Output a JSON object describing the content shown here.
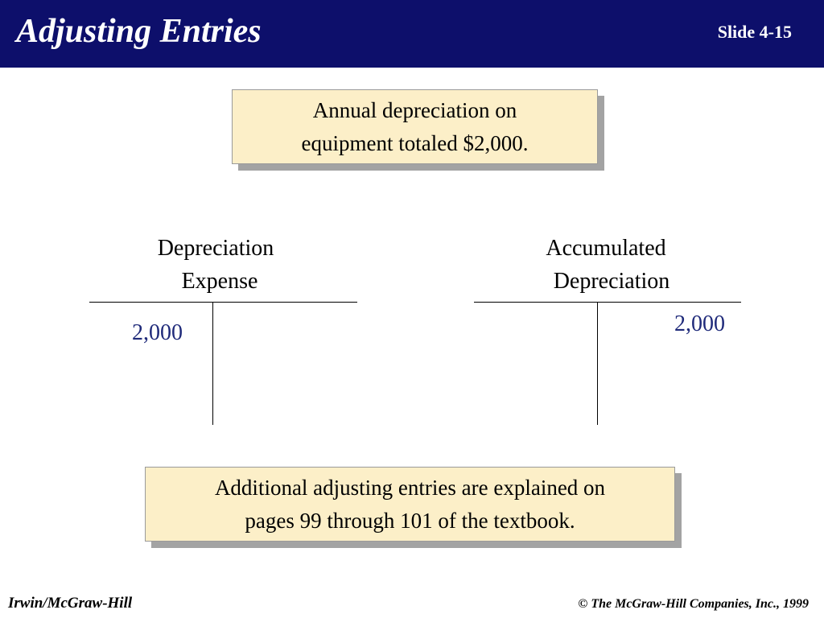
{
  "header": {
    "title": "Adjusting Entries",
    "slide_number": "Slide 4-15"
  },
  "callout_top": {
    "lines": [
      "Annual depreciation on",
      "equipment totaled $2,000."
    ]
  },
  "accounts": [
    {
      "title_lines": [
        "Depreciation",
        "Expense"
      ],
      "debit": "2,000",
      "credit": ""
    },
    {
      "title_lines": [
        "Accumulated",
        "Depreciation"
      ],
      "debit": "",
      "credit": "2,000"
    }
  ],
  "callout_bottom": {
    "lines": [
      "Additional adjusting entries are explained on",
      "pages 99 through 101 of the textbook."
    ]
  },
  "footer": {
    "left": "Irwin/McGraw-Hill",
    "right": "© The McGraw-Hill Companies, Inc., 1999"
  },
  "colors": {
    "header_background": "#0d0f6b",
    "callout_background": "#fcefc8",
    "amount_text": "#1f2a7a"
  }
}
